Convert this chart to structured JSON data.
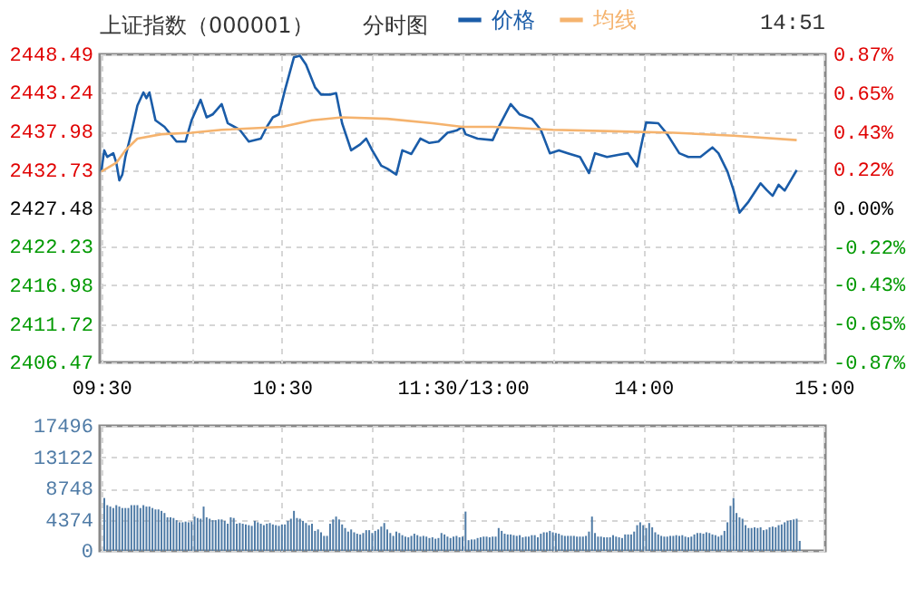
{
  "chart_data": [
    {
      "type": "line",
      "title": "上证指数（000001）",
      "subtitle": "分时图",
      "annotations": [
        "14:51"
      ],
      "legend": "top",
      "grid": true,
      "categories": [
        "09:30",
        null,
        null,
        null,
        null,
        null,
        null,
        null,
        null,
        null,
        null,
        null,
        null,
        null,
        null,
        null,
        null,
        null,
        null,
        null,
        null,
        null,
        null,
        null,
        null,
        null,
        null,
        null,
        null,
        null,
        null,
        null,
        null,
        null,
        null,
        null,
        null,
        null,
        null,
        null,
        null,
        null,
        null,
        null,
        null,
        null,
        null,
        null,
        null,
        null,
        null,
        null,
        null,
        null,
        null,
        null,
        null,
        null,
        null,
        null,
        "10:30",
        null,
        null,
        null,
        null,
        null,
        null,
        null,
        null,
        null,
        null,
        null,
        null,
        null,
        null,
        null,
        null,
        null,
        null,
        null,
        null,
        null,
        null,
        null,
        null,
        null,
        null,
        null,
        null,
        null,
        null,
        null,
        null,
        null,
        null,
        null,
        null,
        null,
        null,
        null,
        null,
        null,
        null,
        null,
        null,
        null,
        null,
        null,
        null,
        null,
        null,
        null,
        null,
        null,
        null,
        null,
        null,
        null,
        null,
        null,
        "11:30/13:00",
        null,
        null,
        null,
        null,
        null,
        null,
        null,
        null,
        null,
        null,
        null,
        null,
        null,
        null,
        null,
        null,
        null,
        null,
        null,
        null,
        null,
        null,
        null,
        null,
        null,
        null,
        null,
        null,
        null,
        null,
        null,
        null,
        null,
        null,
        null,
        null,
        null,
        null,
        null,
        null,
        null,
        null,
        null,
        null,
        null,
        null,
        null,
        null,
        null,
        null,
        null,
        null,
        null,
        null,
        null,
        null,
        null,
        null,
        null,
        "14:00",
        null,
        null,
        null,
        null,
        null,
        null,
        null,
        null,
        null,
        null,
        null,
        null,
        null,
        null,
        null,
        null,
        null,
        null,
        null,
        null,
        null,
        null,
        null,
        null,
        null,
        null,
        null,
        null,
        null,
        null,
        null,
        null,
        null,
        null,
        null,
        null,
        null,
        null,
        null,
        null,
        null,
        null,
        null,
        null,
        null,
        null,
        null,
        null,
        null,
        null,
        null,
        null,
        null,
        null,
        null,
        null,
        null,
        null,
        null,
        "15:00"
      ],
      "ylim": [
        2406.47,
        2448.49
      ],
      "yticks": [
        2406.47,
        2411.72,
        2416.98,
        2422.23,
        2427.48,
        2432.73,
        2437.98,
        2443.24,
        2448.49
      ],
      "y2lim": [
        -0.87,
        0.87
      ],
      "y2ticks": [
        {
          "value": -0.87,
          "label": "-0.87%"
        },
        {
          "value": -0.65,
          "label": "-0.65%"
        },
        {
          "value": -0.43,
          "label": "-0.43%"
        },
        {
          "value": -0.22,
          "label": "-0.22%"
        },
        {
          "value": 0,
          "label": "0.00%"
        },
        {
          "value": 0.22,
          "label": "0.22%"
        },
        {
          "value": 0.43,
          "label": "0.43%"
        },
        {
          "value": 0.65,
          "label": "0.65%"
        },
        {
          "value": 0.87,
          "label": "0.87%"
        }
      ],
      "series": [
        {
          "name": "价格",
          "color": "#1a5ca8",
          "values": [
            2432.5,
            2435.4,
            2434.5,
            null,
            2435.0,
            2433.7,
            2431.3,
            2432.1,
            2434.5,
            null,
            2437.8,
            null,
            2441.5,
            null,
            2443.3,
            2442.5,
            2443.3,
            null,
            2439.5,
            null,
            null,
            2438.6,
            null,
            null,
            null,
            2436.6,
            null,
            null,
            2436.6,
            null,
            2439.5,
            null,
            null,
            2442.3,
            null,
            2439.9,
            null,
            2440.3,
            null,
            null,
            2441.7,
            null,
            2439.1,
            null,
            null,
            null,
            2438.2,
            null,
            null,
            2436.6,
            null,
            null,
            null,
            2437.0,
            null,
            2438.6,
            null,
            2439.9,
            null,
            2440.3,
            null,
            2443.6,
            null,
            null,
            2448.1,
            null,
            2448.3,
            null,
            2447.1,
            null,
            null,
            2444.0,
            null,
            2443.0,
            null,
            null,
            2443.0,
            null,
            2443.2,
            null,
            2439.1,
            null,
            null,
            2435.4,
            null,
            null,
            2436.2,
            null,
            2437.0,
            null,
            2435.4,
            null,
            null,
            2433.3,
            null,
            2432.9,
            null,
            null,
            2432.1,
            null,
            2435.4,
            null,
            null,
            2434.9,
            null,
            null,
            2437.0,
            null,
            null,
            2436.4,
            null,
            null,
            2436.6,
            null,
            null,
            2437.8,
            null,
            null,
            2438.1,
            null,
            2438.6,
            2437.6,
            null,
            null,
            null,
            2437.0,
            null,
            null,
            null,
            null,
            2436.8,
            null,
            2438.6,
            null,
            null,
            null,
            2441.7,
            null,
            null,
            2440.3,
            null,
            null,
            null,
            2439.7,
            null,
            null,
            2438.2,
            null,
            null,
            2435.0,
            null,
            null,
            2435.4,
            null,
            null,
            2435.0,
            null,
            null,
            null,
            2434.5,
            null,
            null,
            2432.3,
            null,
            2435.0,
            null,
            null,
            null,
            2434.5,
            null,
            null,
            null,
            2434.8,
            null,
            null,
            2435.0,
            null,
            null,
            2433.2,
            2435.4,
            null,
            2439.2,
            null,
            null,
            null,
            2439.1,
            null,
            null,
            2437.6,
            null,
            null,
            null,
            2435.0,
            null,
            null,
            2434.5,
            null,
            null,
            null,
            2434.5,
            null,
            null,
            null,
            2435.8,
            null,
            2435.0,
            null,
            null,
            2432.5,
            null,
            2430.0,
            null,
            2426.9,
            null,
            null,
            2428.4,
            null,
            null,
            null,
            2430.9,
            null,
            2430.0,
            null,
            2429.2,
            null,
            2430.7,
            null,
            2429.9,
            null,
            2431.3,
            null,
            2432.7,
            null,
            null,
            null,
            null,
            null,
            null,
            null,
            null,
            null
          ]
        },
        {
          "name": "均线",
          "color": "#f5b36e",
          "values": [
            2432.5,
            null,
            null,
            null,
            null,
            2433.7,
            null,
            null,
            2435.4,
            null,
            null,
            null,
            2437.0,
            null,
            null,
            null,
            null,
            null,
            null,
            null,
            2437.6,
            null,
            null,
            null,
            null,
            null,
            null,
            null,
            null,
            null,
            2437.8,
            null,
            null,
            null,
            null,
            null,
            null,
            null,
            null,
            null,
            2438.2,
            null,
            null,
            null,
            null,
            null,
            null,
            null,
            null,
            null,
            null,
            null,
            null,
            null,
            null,
            null,
            null,
            null,
            null,
            null,
            2438.6,
            null,
            null,
            null,
            null,
            null,
            null,
            null,
            null,
            null,
            2439.5,
            null,
            null,
            null,
            null,
            null,
            null,
            null,
            null,
            null,
            2439.9,
            null,
            null,
            null,
            null,
            null,
            null,
            null,
            null,
            null,
            null,
            null,
            null,
            null,
            null,
            2439.7,
            null,
            null,
            null,
            null,
            null,
            null,
            null,
            null,
            null,
            null,
            null,
            null,
            null,
            null,
            2439.1,
            null,
            null,
            null,
            null,
            null,
            null,
            null,
            null,
            null,
            2438.6,
            null,
            null,
            null,
            null,
            null,
            null,
            null,
            null,
            null,
            2438.6,
            null,
            null,
            null,
            null,
            null,
            null,
            null,
            null,
            null,
            null,
            null,
            null,
            null,
            null,
            null,
            null,
            null,
            null,
            null,
            2438.2,
            null,
            null,
            null,
            null,
            null,
            null,
            null,
            null,
            null,
            null,
            null,
            null,
            null,
            null,
            null,
            null,
            null,
            null,
            null,
            2438.0,
            null,
            null,
            null,
            null,
            null,
            null,
            null,
            null,
            null,
            null,
            null,
            null,
            null,
            null,
            null,
            null,
            null,
            null,
            null,
            2437.8,
            null,
            null,
            null,
            null,
            null,
            null,
            null,
            null,
            null,
            null,
            null,
            null,
            null,
            null,
            null,
            null,
            null,
            null,
            null,
            2437.4,
            null,
            null,
            null,
            null,
            null,
            null,
            null,
            null,
            null,
            null,
            null,
            null,
            null,
            null,
            null,
            null,
            null,
            null,
            null,
            null,
            2436.8,
            null,
            null,
            null,
            null,
            null,
            null,
            null,
            null,
            null
          ]
        }
      ]
    },
    {
      "type": "bar",
      "color": "#4f7ba6",
      "grid": true,
      "tick_labels": "y",
      "categories": [
        null,
        null,
        null,
        null,
        null,
        null,
        null,
        null,
        null,
        null,
        null,
        null,
        null,
        null,
        null,
        null,
        null,
        null,
        null,
        null,
        null,
        null,
        null,
        null,
        null,
        null,
        null,
        null,
        null,
        null,
        null,
        null,
        null,
        null,
        null,
        null,
        null,
        null,
        null,
        null,
        null,
        null,
        null,
        null,
        null,
        null,
        null,
        null,
        null,
        null,
        null,
        null,
        null,
        null,
        null,
        null,
        null,
        null,
        null,
        null,
        null,
        null,
        null,
        null,
        null,
        null,
        null,
        null,
        null,
        null,
        null,
        null,
        null,
        null,
        null,
        null,
        null,
        null,
        null,
        null,
        null,
        null,
        null,
        null,
        null,
        null,
        null,
        null,
        null,
        null,
        null,
        null,
        null,
        null,
        null,
        null,
        null,
        null,
        null,
        null,
        null,
        null,
        null,
        null,
        null,
        null,
        null,
        null,
        null,
        null,
        null,
        null,
        null,
        null,
        null,
        null,
        null,
        null,
        null,
        null,
        null,
        null,
        null,
        null,
        null,
        null,
        null,
        null,
        null,
        null,
        null,
        null,
        null,
        null,
        null,
        null,
        null,
        null,
        null,
        null,
        null,
        null,
        null,
        null,
        null,
        null,
        null,
        null,
        null,
        null,
        null,
        null,
        null,
        null,
        null,
        null,
        null,
        null,
        null,
        null,
        null,
        null,
        null,
        null,
        null,
        null,
        null,
        null,
        null,
        null,
        null,
        null,
        null,
        null,
        null,
        null,
        null,
        null,
        null,
        null,
        null,
        null,
        null,
        null,
        null,
        null,
        null,
        null,
        null,
        null,
        null,
        null,
        null,
        null,
        null,
        null,
        null,
        null,
        null,
        null,
        null,
        null,
        null,
        null,
        null,
        null,
        null,
        null,
        null,
        null,
        null,
        null,
        null,
        null,
        null,
        null,
        null,
        null,
        null,
        null,
        null,
        null,
        null,
        null,
        null,
        null,
        null,
        null,
        null,
        null,
        null,
        null,
        null,
        null,
        null,
        null,
        null,
        null,
        null,
        null,
        null
      ],
      "ylim": [
        0,
        17496
      ],
      "yticks": [
        0,
        4374,
        8748,
        13122,
        17496
      ],
      "values": [
        null,
        7400,
        6400,
        6200,
        6000,
        6400,
        6200,
        6000,
        6000,
        6000,
        6400,
        6400,
        6400,
        6000,
        6400,
        6200,
        6200,
        6000,
        5800,
        5800,
        5600,
        5300,
        4700,
        4700,
        4600,
        4300,
        4000,
        4000,
        4100,
        4000,
        4100,
        4800,
        4600,
        4500,
        6200,
        4700,
        4500,
        4300,
        4300,
        4400,
        4400,
        4200,
        3800,
        4700,
        4600,
        3800,
        3900,
        3800,
        3700,
        3600,
        3500,
        4200,
        4000,
        3800,
        3600,
        3800,
        3900,
        3700,
        3600,
        3500,
        3700,
        3700,
        4200,
        4500,
        5600,
        4600,
        4500,
        4200,
        3900,
        3600,
        3800,
        2800,
        3000,
        2600,
        2100,
        2100,
        3800,
        4400,
        4800,
        4400,
        3700,
        3200,
        2700,
        3000,
        2600,
        2400,
        2300,
        2500,
        2900,
        2900,
        2500,
        2800,
        3000,
        3400,
        3900,
        3000,
        2500,
        2100,
        2700,
        2500,
        2200,
        2000,
        1900,
        2100,
        2400,
        2200,
        2000,
        2100,
        2000,
        1800,
        1900,
        1700,
        1800,
        2500,
        2300,
        2000,
        1800,
        2000,
        2100,
        1900,
        2000,
        5500,
        1500,
        1600,
        1600,
        1800,
        1900,
        2000,
        2000,
        1900,
        2000,
        2000,
        3200,
        2800,
        2400,
        2300,
        2300,
        2200,
        2100,
        2200,
        1900,
        2000,
        2000,
        2200,
        2200,
        1900,
        2400,
        2600,
        2600,
        2800,
        2600,
        2500,
        2400,
        2200,
        2100,
        2100,
        2100,
        2100,
        2000,
        2000,
        2000,
        2100,
        2700,
        4800,
        2500,
        2000,
        2000,
        1900,
        1900,
        1900,
        2200,
        2000,
        1900,
        1800,
        2300,
        2300,
        2300,
        2700,
        3600,
        4000,
        3600,
        3200,
        3900,
        3300,
        2600,
        2300,
        2100,
        2000,
        2000,
        2100,
        2100,
        2200,
        2100,
        2200,
        2000,
        1900,
        2000,
        2300,
        2500,
        2500,
        2400,
        2600,
        2500,
        2300,
        2200,
        2000,
        2200,
        2800,
        4000,
        6300,
        7400,
        5300,
        4700,
        4500,
        3600,
        3200,
        3200,
        3300,
        3200,
        3300,
        2900,
        3000,
        3300,
        3400,
        3300,
        3600,
        3700,
        4000,
        4200,
        4300,
        4400,
        4500,
        1400,
        null,
        null,
        null,
        null,
        null,
        null,
        null,
        null
      ]
    }
  ]
}
